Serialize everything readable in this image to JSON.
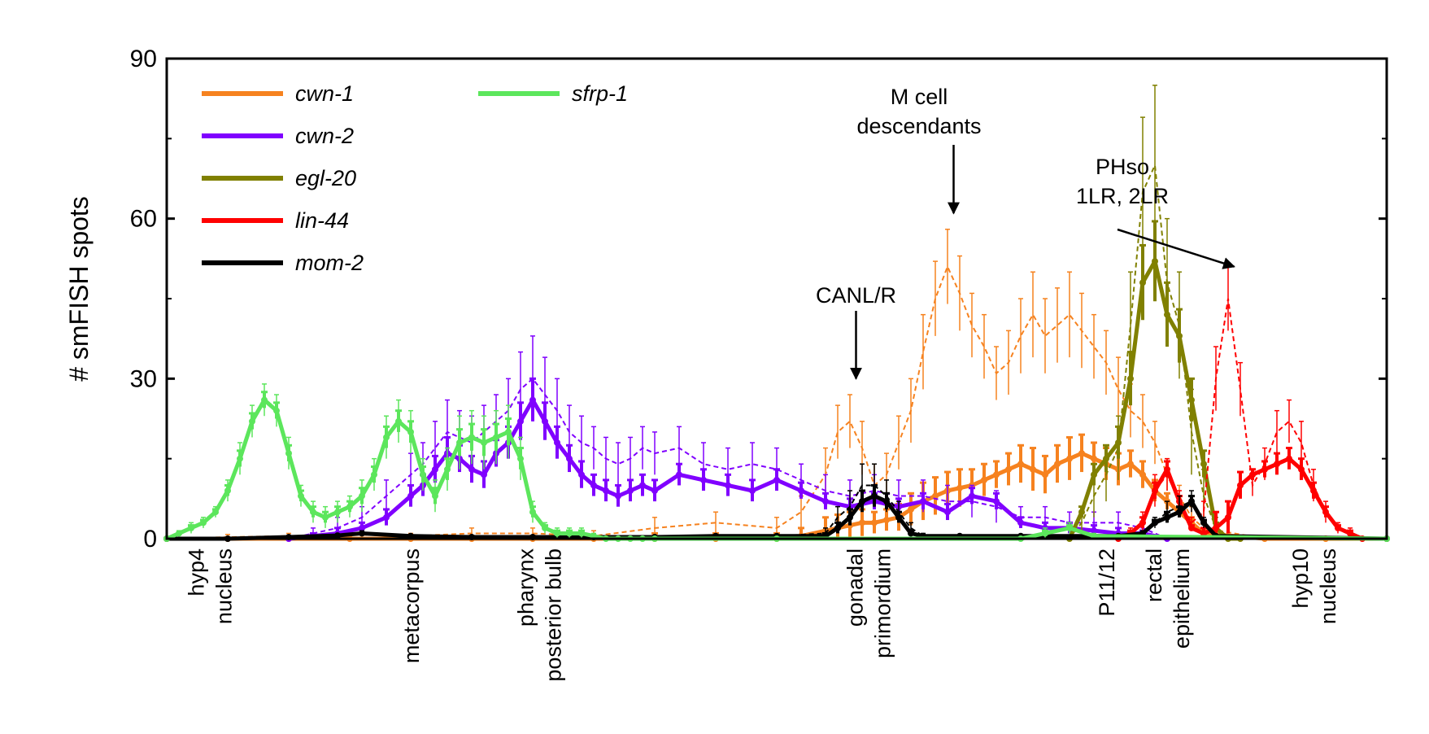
{
  "chart_data": {
    "type": "line",
    "title": "",
    "xlabel": "",
    "ylabel": "# smFISH spots",
    "ylim": [
      0,
      90
    ],
    "xlim": [
      0,
      100
    ],
    "yticks": [
      "0",
      "30",
      "60",
      "90"
    ],
    "x_categories": [
      {
        "lines": [
          "hyp4",
          "nucleus"
        ],
        "x": 3.5
      },
      {
        "lines": [
          "metacorpus"
        ],
        "x": 20
      },
      {
        "lines": [
          "pharynx",
          "posterior bulb"
        ],
        "x": 30.5
      },
      {
        "lines": [
          "gonadal",
          "primordium"
        ],
        "x": 57.5
      },
      {
        "lines": [
          "P11/12"
        ],
        "x": 77
      },
      {
        "lines": [
          "rectal",
          "epithelium"
        ],
        "x": 82
      },
      {
        "lines": [
          "hyp10",
          "nucleus"
        ],
        "x": 94
      }
    ],
    "annotations": [
      {
        "lines": [
          "CANL/R"
        ],
        "target": [
          56.5,
          30
        ],
        "arrow": true
      },
      {
        "lines": [
          "M cell",
          "descendants"
        ],
        "target": [
          64.5,
          61
        ],
        "arrow": true
      },
      {
        "lines": [
          "PHso",
          "1LR, 2LR"
        ],
        "target": [
          87.5,
          51
        ],
        "arrow": true
      }
    ],
    "legend_position": "top-left",
    "series": [
      {
        "name": "cwn-1",
        "color": "#f6821f",
        "x": [
          0,
          5,
          10,
          15,
          20,
          25,
          30,
          35,
          40,
          45,
          50,
          52,
          54,
          55,
          56,
          57,
          58,
          59,
          60,
          61,
          62,
          63,
          64,
          65,
          66,
          67,
          68,
          69,
          70,
          71,
          72,
          73,
          74,
          75,
          76,
          77,
          78,
          79,
          80,
          81,
          82,
          83,
          84,
          85,
          90,
          95,
          100
        ],
        "solid": [
          0,
          0,
          0,
          0,
          0,
          0,
          0,
          0,
          0,
          0,
          0,
          0.5,
          1.5,
          2,
          2.5,
          3,
          3,
          3.5,
          4,
          5.5,
          7,
          8,
          9,
          9.5,
          10,
          11,
          12,
          13,
          14,
          13,
          12,
          14,
          15,
          16,
          15,
          14,
          13,
          14,
          12,
          9,
          7,
          5,
          3,
          1,
          0,
          0,
          0
        ],
        "dashed": [
          0,
          0.3,
          0.5,
          0.8,
          0.5,
          1,
          1,
          0.5,
          2,
          3,
          2,
          5,
          12,
          20,
          22,
          17,
          10,
          12,
          18,
          24,
          35,
          45,
          51,
          46,
          40,
          36,
          31,
          33,
          38,
          42,
          38,
          40,
          42,
          39,
          36,
          33,
          28,
          24,
          22,
          18,
          12,
          8,
          4,
          2,
          0,
          0,
          0
        ],
        "err": [
          0,
          0.5,
          0.5,
          0.5,
          0.5,
          1,
          1,
          1,
          2,
          2,
          2,
          3,
          5,
          5,
          5,
          5,
          4,
          4,
          5,
          6,
          7,
          7,
          7,
          7,
          6,
          6,
          5,
          6,
          7,
          8,
          7,
          7,
          8,
          7,
          6,
          6,
          6,
          5,
          5,
          4,
          3,
          2,
          2,
          1,
          0,
          0,
          0
        ]
      },
      {
        "name": "cwn-2",
        "color": "#8000ff",
        "x": [
          10,
          12,
          14,
          16,
          18,
          20,
          21,
          22,
          23,
          24,
          25,
          26,
          27,
          28,
          29,
          30,
          31,
          32,
          33,
          34,
          35,
          36,
          37,
          38,
          39,
          40,
          42,
          44,
          46,
          48,
          50,
          52,
          54,
          56,
          58,
          60,
          62,
          64,
          66,
          68,
          70,
          72,
          74,
          76,
          78,
          80,
          82
        ],
        "solid": [
          0,
          0.5,
          1,
          2,
          4,
          8,
          10,
          13,
          16,
          15,
          13,
          12,
          16,
          18,
          22,
          26,
          22,
          18,
          15,
          12,
          10,
          9,
          8,
          9,
          10,
          9,
          12,
          11,
          10,
          9,
          11,
          9,
          7,
          6,
          7,
          6,
          7,
          5,
          8,
          7,
          3,
          2,
          2,
          1.5,
          1,
          1,
          0
        ],
        "dashed": [
          0,
          1,
          2,
          4,
          8,
          12,
          14,
          17,
          20,
          19,
          18,
          20,
          22,
          24,
          28,
          30,
          27,
          24,
          20,
          18,
          17,
          15,
          14,
          15,
          17,
          16,
          17,
          14,
          13,
          14,
          13,
          11,
          9,
          8,
          9,
          8,
          8,
          7,
          7,
          6,
          4,
          4,
          3,
          3,
          3,
          2,
          0
        ],
        "err": [
          0,
          1,
          2,
          2,
          3,
          4,
          4,
          5,
          6,
          5,
          5,
          5,
          5,
          6,
          7,
          8,
          7,
          6,
          5,
          5,
          4,
          4,
          4,
          4,
          4,
          4,
          4,
          4,
          4,
          4,
          4,
          3,
          3,
          3,
          3,
          3,
          3,
          3,
          3,
          3,
          2,
          2,
          2,
          2,
          2,
          1,
          0
        ]
      },
      {
        "name": "egl-20",
        "color": "#808000",
        "x": [
          74,
          75,
          76,
          77,
          78,
          79,
          80,
          81,
          82,
          83,
          84,
          85,
          86,
          87,
          88
        ],
        "solid": [
          0,
          5,
          12,
          15,
          18,
          30,
          48,
          52,
          42,
          38,
          26,
          14,
          2,
          0,
          0
        ],
        "dashed": [
          0,
          3,
          8,
          12,
          17,
          40,
          65,
          70,
          48,
          40,
          20,
          8,
          2,
          0,
          0
        ],
        "err": [
          0,
          2,
          4,
          5,
          6,
          10,
          14,
          15,
          12,
          10,
          8,
          5,
          2,
          0,
          0
        ]
      },
      {
        "name": "lin-44",
        "color": "#ff0000",
        "x": [
          78,
          79,
          80,
          81,
          82,
          83,
          84,
          85,
          86,
          87,
          88,
          89,
          90,
          91,
          92,
          93,
          94,
          95,
          96,
          97,
          98
        ],
        "solid": [
          0,
          1,
          3,
          9,
          13,
          7,
          2,
          1,
          2,
          4,
          10,
          12,
          13,
          14,
          15,
          13,
          9,
          5,
          2,
          1,
          0
        ],
        "dashed": [
          0,
          1,
          3,
          9,
          12,
          7,
          3,
          5,
          30,
          45,
          28,
          10,
          14,
          20,
          22,
          18,
          10,
          5,
          2,
          1,
          0
        ],
        "err": [
          0,
          1,
          2,
          3,
          3,
          2,
          1,
          2,
          6,
          6,
          5,
          2,
          3,
          4,
          4,
          4,
          3,
          2,
          1,
          1,
          0
        ]
      },
      {
        "name": "mom-2",
        "color": "#000000",
        "x": [
          0,
          5,
          10,
          14,
          16,
          20,
          25,
          30,
          35,
          40,
          45,
          50,
          54,
          55,
          56,
          57,
          58,
          59,
          60,
          61,
          62,
          65,
          70,
          76,
          78,
          80,
          81,
          82,
          83,
          84,
          85,
          86,
          100
        ],
        "solid": [
          0,
          0,
          0.3,
          0.6,
          1,
          0.5,
          0.3,
          0.3,
          0.3,
          0.3,
          0.5,
          0.5,
          0.5,
          2,
          4,
          7,
          8,
          7,
          4,
          1,
          0.5,
          0.5,
          0.5,
          0.5,
          0.5,
          1,
          3,
          4,
          5,
          7,
          3,
          0.5,
          0
        ],
        "dashed": [
          0,
          0,
          0.3,
          0.6,
          1,
          0.5,
          0.3,
          0.3,
          0.3,
          0.3,
          0.5,
          0.5,
          1,
          4,
          6,
          10,
          10,
          8,
          5,
          2,
          0.5,
          0.5,
          0.5,
          0.5,
          0.5,
          1,
          3,
          5,
          6,
          7,
          3,
          0.5,
          0
        ],
        "err": [
          0,
          0,
          0.3,
          0.3,
          0.5,
          0.3,
          0.3,
          0.3,
          0.3,
          0.3,
          0.3,
          0.3,
          1,
          2,
          3,
          4,
          4,
          3,
          2,
          1,
          0.5,
          0.3,
          0.3,
          0.3,
          0.3,
          0.5,
          1,
          2,
          2,
          2,
          1,
          0.3,
          0
        ]
      },
      {
        "name": "sfrp-1",
        "color": "#5ce65c",
        "x": [
          0,
          1,
          2,
          3,
          4,
          5,
          6,
          7,
          8,
          9,
          10,
          11,
          12,
          13,
          14,
          15,
          16,
          17,
          18,
          19,
          20,
          21,
          22,
          23,
          24,
          25,
          26,
          27,
          28,
          29,
          30,
          31,
          32,
          33,
          34,
          35,
          36,
          37,
          38,
          39,
          40,
          50,
          70,
          72,
          74,
          76,
          100
        ],
        "solid": [
          0,
          1,
          2,
          3,
          5,
          9,
          15,
          22,
          26,
          24,
          16,
          8,
          5,
          4,
          5,
          6,
          8,
          12,
          19,
          22,
          20,
          12,
          8,
          13,
          18,
          19,
          18,
          19,
          20,
          15,
          5,
          2,
          1,
          1,
          1,
          0.5,
          0,
          0,
          0,
          0,
          0,
          0,
          0,
          1,
          2,
          0.5,
          0
        ],
        "dashed": [
          0,
          1,
          2,
          3,
          5,
          9,
          15,
          22,
          26,
          24,
          16,
          8,
          5,
          4,
          5,
          6,
          8,
          12,
          19,
          22,
          20,
          12,
          8,
          13,
          18,
          19,
          18,
          19,
          20,
          15,
          5,
          2,
          1,
          1,
          1,
          0.5,
          0,
          0,
          0,
          0,
          0,
          0,
          0,
          1,
          2,
          0.5,
          0
        ],
        "err": [
          0,
          0.5,
          1,
          1,
          1,
          2,
          3,
          3,
          3,
          3,
          3,
          2,
          2,
          2,
          2,
          2,
          3,
          3,
          4,
          4,
          4,
          3,
          3,
          4,
          5,
          5,
          5,
          5,
          5,
          4,
          2,
          1,
          1,
          1,
          1,
          0.5,
          0,
          0,
          0,
          0,
          0,
          0,
          0,
          1,
          1,
          0.5,
          0
        ]
      }
    ]
  }
}
